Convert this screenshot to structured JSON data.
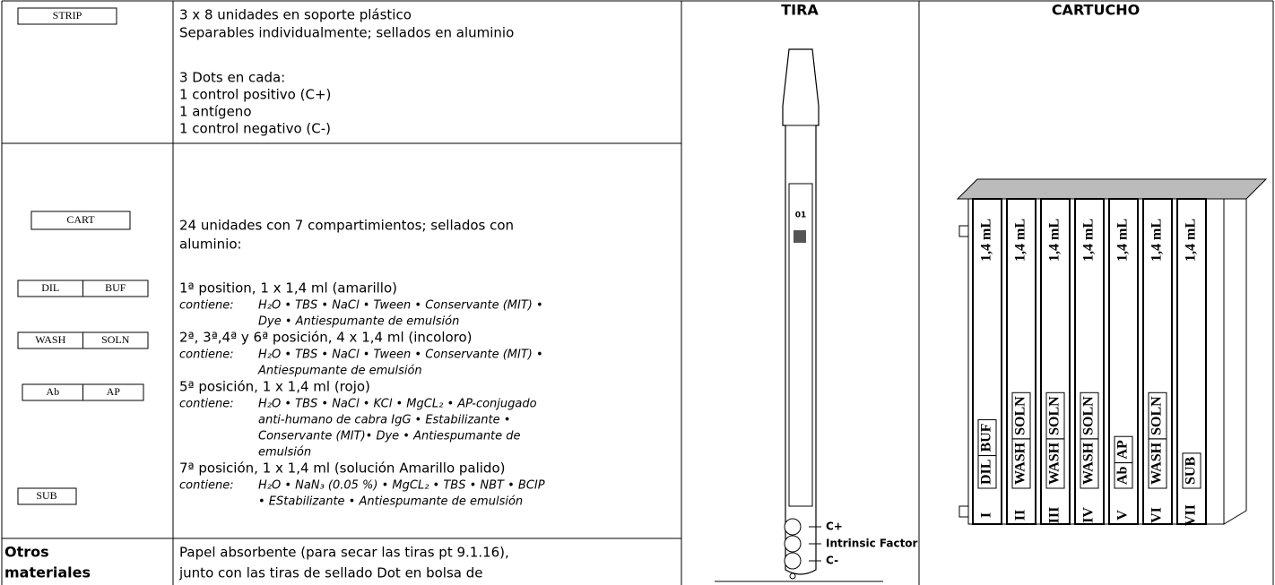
{
  "strip_section": {
    "label": "STRIP",
    "lines": [
      "3 x 8 unidades en soporte plástico",
      "Separables individualmente; sellados en aluminio",
      "3 Dots en cada:",
      "1 control positivo (C+)",
      "1 antígeno",
      "1 control negativo (C-)"
    ]
  },
  "cart_section": {
    "labels": {
      "cart": "CART",
      "dil": "DIL",
      "buf": "BUF",
      "wash": "WASH",
      "soln": "SOLN",
      "ab": "Ab",
      "ap": "AP",
      "sub": "SUB"
    },
    "intro": [
      "24 unidades con 7 compartimientos; sellados con",
      "aluminio:"
    ],
    "positions": [
      {
        "heading": "1ª position, 1 x 1,4 ml (amarillo)",
        "contains_label": "contiene:",
        "contents": [
          "H₂O • TBS • NaCl • Tween •  Conservante (MIT) •",
          "Dye • Antiespumante de emulsión"
        ]
      },
      {
        "heading": "2ª, 3ª,4ª y 6ª posición, 4 x 1,4 ml (incoloro)",
        "contains_label": "contiene:",
        "contents": [
          "H₂O • TBS • NaCl • Tween • Conservante (MIT) •",
          "Antiespumante de emulsión"
        ]
      },
      {
        "heading": "5ª posición, 1 x 1,4 ml (rojo)",
        "contains_label": "contiene:",
        "contents": [
          "H₂O • TBS • NaCl • KCl • MgCL₂ •  AP-conjugado",
          "anti-humano de cabra IgG • Estabilizante •",
          "Conservante (MIT)• Dye • Antiespumante de",
          "emulsión"
        ]
      },
      {
        "heading": "7ª posición, 1 x 1,4 ml (solución Amarillo palido)",
        "contains_label": "contiene:",
        "contents": [
          "H₂O • NaN₃ (0.05 %) • MgCL₂ • TBS • NBT • BCIP",
          "• EStabilizante • Antiespumante de emulsión"
        ]
      }
    ]
  },
  "other_materials": {
    "label_lines": [
      "Otros",
      "materiales"
    ],
    "text": [
      "Papel absorbente (para secar las tiras pt 9.1.16),",
      "junto con las tiras de sellado Dot en bolsa de"
    ]
  },
  "tira": {
    "title": "TIRA",
    "number": "01",
    "dots": [
      "C+",
      "Intrinsic Factor",
      "C-"
    ]
  },
  "cartucho": {
    "title": "CARTUCHO",
    "compartments": [
      {
        "volume": "1,4 mL",
        "labels": [
          "DIL",
          "BUF"
        ],
        "numeral": "I"
      },
      {
        "volume": "1,4 mL",
        "labels": [
          "WASH",
          "SOLN"
        ],
        "numeral": "II"
      },
      {
        "volume": "1,4 mL",
        "labels": [
          "WASH",
          "SOLN"
        ],
        "numeral": "III"
      },
      {
        "volume": "1,4 mL",
        "labels": [
          "WASH",
          "SOLN"
        ],
        "numeral": "IV"
      },
      {
        "volume": "1,4 mL",
        "labels": [
          "Ab",
          "AP"
        ],
        "numeral": "V"
      },
      {
        "volume": "1,4 mL",
        "labels": [
          "WASH",
          "SOLN"
        ],
        "numeral": "VI"
      },
      {
        "volume": "1,4 mL",
        "labels": [
          "SUB"
        ],
        "numeral": "VII"
      }
    ]
  }
}
